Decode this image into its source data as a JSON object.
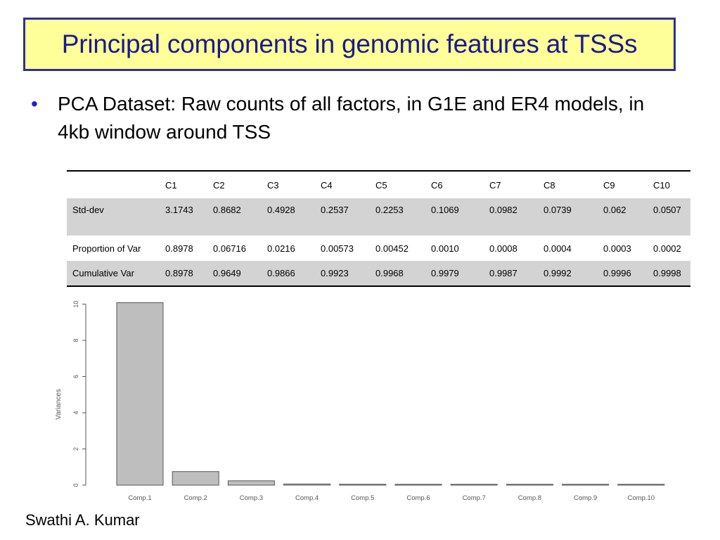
{
  "slide": {
    "title": "Principal components in genomic features at TSSs",
    "bullet": "PCA Dataset: Raw counts of all factors, in G1E and ER4 models, in 4kb window around TSS",
    "footer": "Swathi A. Kumar"
  },
  "table": {
    "headers": [
      "",
      "C1",
      "C2",
      "C3",
      "C4",
      "C5",
      "C6",
      "C7",
      "C8",
      "C9",
      "C10"
    ],
    "rows": [
      [
        "Std-dev",
        "3.1743",
        "0.8682",
        "0.4928",
        "0.2537",
        "0.2253",
        "0.1069",
        "0.0982",
        "0.0739",
        "0.062",
        "0.0507"
      ],
      [
        "Proportion of Var",
        "0.8978",
        "0.06716",
        "0.0216",
        "0.00573",
        "0.00452",
        "0.0010",
        "0.0008",
        "0.0004",
        "0.0003",
        "0.0002"
      ],
      [
        "Cumulative Var",
        "0.8978",
        "0.9649",
        "0.9866",
        "0.9923",
        "0.9968",
        "0.9979",
        "0.9987",
        "0.9992",
        "0.9996",
        "0.9998"
      ]
    ]
  },
  "chart_data": {
    "type": "bar",
    "categories": [
      "Comp.1",
      "Comp.2",
      "Comp.3",
      "Comp.4",
      "Comp.5",
      "Comp.6",
      "Comp.7",
      "Comp.8",
      "Comp.9",
      "Comp.10"
    ],
    "values": [
      10.08,
      0.75,
      0.24,
      0.064,
      0.051,
      0.011,
      0.0096,
      0.0055,
      0.0038,
      0.0026
    ],
    "ylabel": "Variances",
    "yticks": [
      "0",
      "2",
      "4",
      "6",
      "8",
      "10"
    ],
    "ylim": [
      0,
      10.1
    ],
    "bar_color": "#bebebe"
  },
  "colors": {
    "title_bg": "#ffff99",
    "title_border": "#2e3192",
    "title_text": "#1a1a8c",
    "bullet": "#2222cc",
    "row_shade": "#d3d3d3"
  }
}
